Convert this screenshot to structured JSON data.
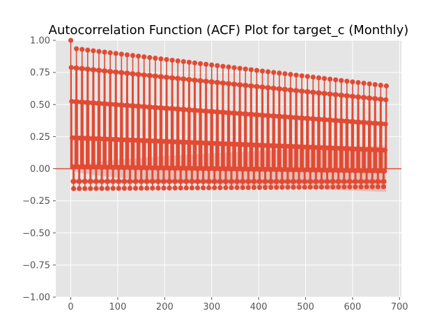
{
  "chart_data": {
    "type": "stem",
    "title": "Autocorrelation Function (ACF) Plot for target_c (Monthly)",
    "xlabel": "",
    "ylabel": "",
    "xlim": [
      -32,
      704
    ],
    "ylim": [
      -1.0,
      1.0
    ],
    "xticks": [
      0,
      100,
      200,
      300,
      400,
      500,
      600,
      700
    ],
    "xtick_labels": [
      "0",
      "100",
      "200",
      "300",
      "400",
      "500",
      "600",
      "700"
    ],
    "yticks": [
      -1.0,
      -0.75,
      -0.5,
      -0.25,
      0.0,
      0.25,
      0.5,
      0.75,
      1.0
    ],
    "ytick_labels": [
      "−1.00",
      "−0.75",
      "−0.50",
      "−0.25",
      "0.00",
      "0.25",
      "0.50",
      "0.75",
      "1.00"
    ],
    "grid": true,
    "max_lag": 672,
    "season_period": 12,
    "season_pattern": [
      1.0,
      0.84,
      0.56,
      0.26,
      0.02,
      -0.1,
      -0.16,
      -0.1,
      0.02,
      0.26,
      0.56,
      0.84
    ],
    "season_peak_start": 0.94,
    "season_peak_end": 0.645,
    "season_trough_start": -0.155,
    "season_trough_end": -0.14,
    "confidence_band_final": 0.18,
    "colors": {
      "series": "#e24a33",
      "band": "#e24a33",
      "axes_background": "#e5e5e5",
      "grid": "#ffffff",
      "zero_line": "#e24a33"
    }
  }
}
